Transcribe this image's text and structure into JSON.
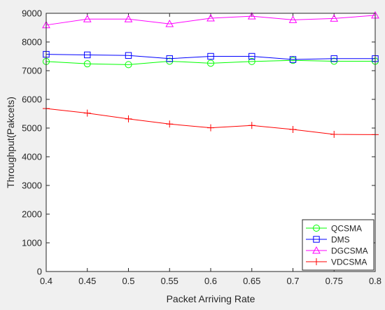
{
  "chart_data": {
    "type": "line",
    "xlabel": "Packet Arriving Rate",
    "ylabel": "Throughput(Pakcets)",
    "x": [
      0.4,
      0.45,
      0.5,
      0.55,
      0.6,
      0.65,
      0.7,
      0.75,
      0.8
    ],
    "xlim": [
      0.4,
      0.8
    ],
    "ylim": [
      0,
      9000
    ],
    "xticks": [
      "0.4",
      "0.45",
      "0.5",
      "0.55",
      "0.6",
      "0.65",
      "0.7",
      "0.75",
      "0.8"
    ],
    "yticks": [
      "0",
      "1000",
      "2000",
      "3000",
      "4000",
      "5000",
      "6000",
      "7000",
      "8000",
      "9000"
    ],
    "grid": false,
    "legend_position": "bottom-right",
    "series": [
      {
        "name": "QCSMA",
        "color": "#00ff00",
        "marker": "circle",
        "values": [
          7320,
          7240,
          7210,
          7330,
          7260,
          7320,
          7360,
          7330,
          7330
        ]
      },
      {
        "name": "DMS",
        "color": "#0000ff",
        "marker": "square",
        "values": [
          7570,
          7550,
          7530,
          7420,
          7500,
          7500,
          7390,
          7420,
          7420
        ]
      },
      {
        "name": "DGCSMA",
        "color": "#ff00ff",
        "marker": "triangle",
        "values": [
          8590,
          8800,
          8800,
          8630,
          8830,
          8900,
          8770,
          8820,
          8930
        ]
      },
      {
        "name": "VDCSMA",
        "color": "#ff0000",
        "marker": "plus",
        "values": [
          5680,
          5520,
          5320,
          5140,
          5010,
          5090,
          4950,
          4780,
          4770
        ]
      }
    ]
  }
}
